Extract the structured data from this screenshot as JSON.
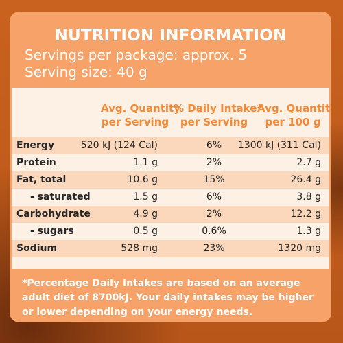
{
  "title": "NUTRITION INFORMATION",
  "servings_per_package": "Servings per package: approx. 5",
  "serving_size": "Serving size: 40 g",
  "headers": {
    "col1": [
      "Avg. Quantity",
      "per Serving"
    ],
    "col2": [
      "% Daily Intake*",
      "per Serving"
    ],
    "col3": [
      "Avg. Quantity",
      "per 100 g"
    ]
  },
  "rows": [
    {
      "name": "Energy",
      "per_serving": "520 kJ (124 Cal)",
      "daily_intake": "6%",
      "per_100g": "1300 kJ (311 Cal)"
    },
    {
      "name": "Protein",
      "per_serving": "1.1 g",
      "daily_intake": "2%",
      "per_100g": "2.7 g"
    },
    {
      "name": "Fat, total",
      "per_serving": "10.6 g",
      "daily_intake": "15%",
      "per_100g": "26.4 g"
    },
    {
      "name": "- saturated",
      "per_serving": "1.5 g",
      "daily_intake": "6%",
      "per_100g": "3.8 g"
    },
    {
      "name": "Carbohydrate",
      "per_serving": "4.9 g",
      "daily_intake": "2%",
      "per_100g": "12.2 g"
    },
    {
      "name": "- sugars",
      "per_serving": "0.5 g",
      "daily_intake": "0.6%",
      "per_100g": "1.3 g"
    },
    {
      "name": "Sodium",
      "per_serving": "528 mg",
      "daily_intake": "23%",
      "per_100g": "1320 mg"
    }
  ],
  "footer": "*Percentage Daily Intakes are based on an average adult diet of 8700kJ. Your daily intakes may be higher or lower depending on your energy needs.",
  "colors": {
    "panel": "#f7a269",
    "table_background": "#fdf1e6",
    "row_shade": "#fbd8bc",
    "header_text": "#f58a36",
    "title_text": "#ffffff"
  }
}
